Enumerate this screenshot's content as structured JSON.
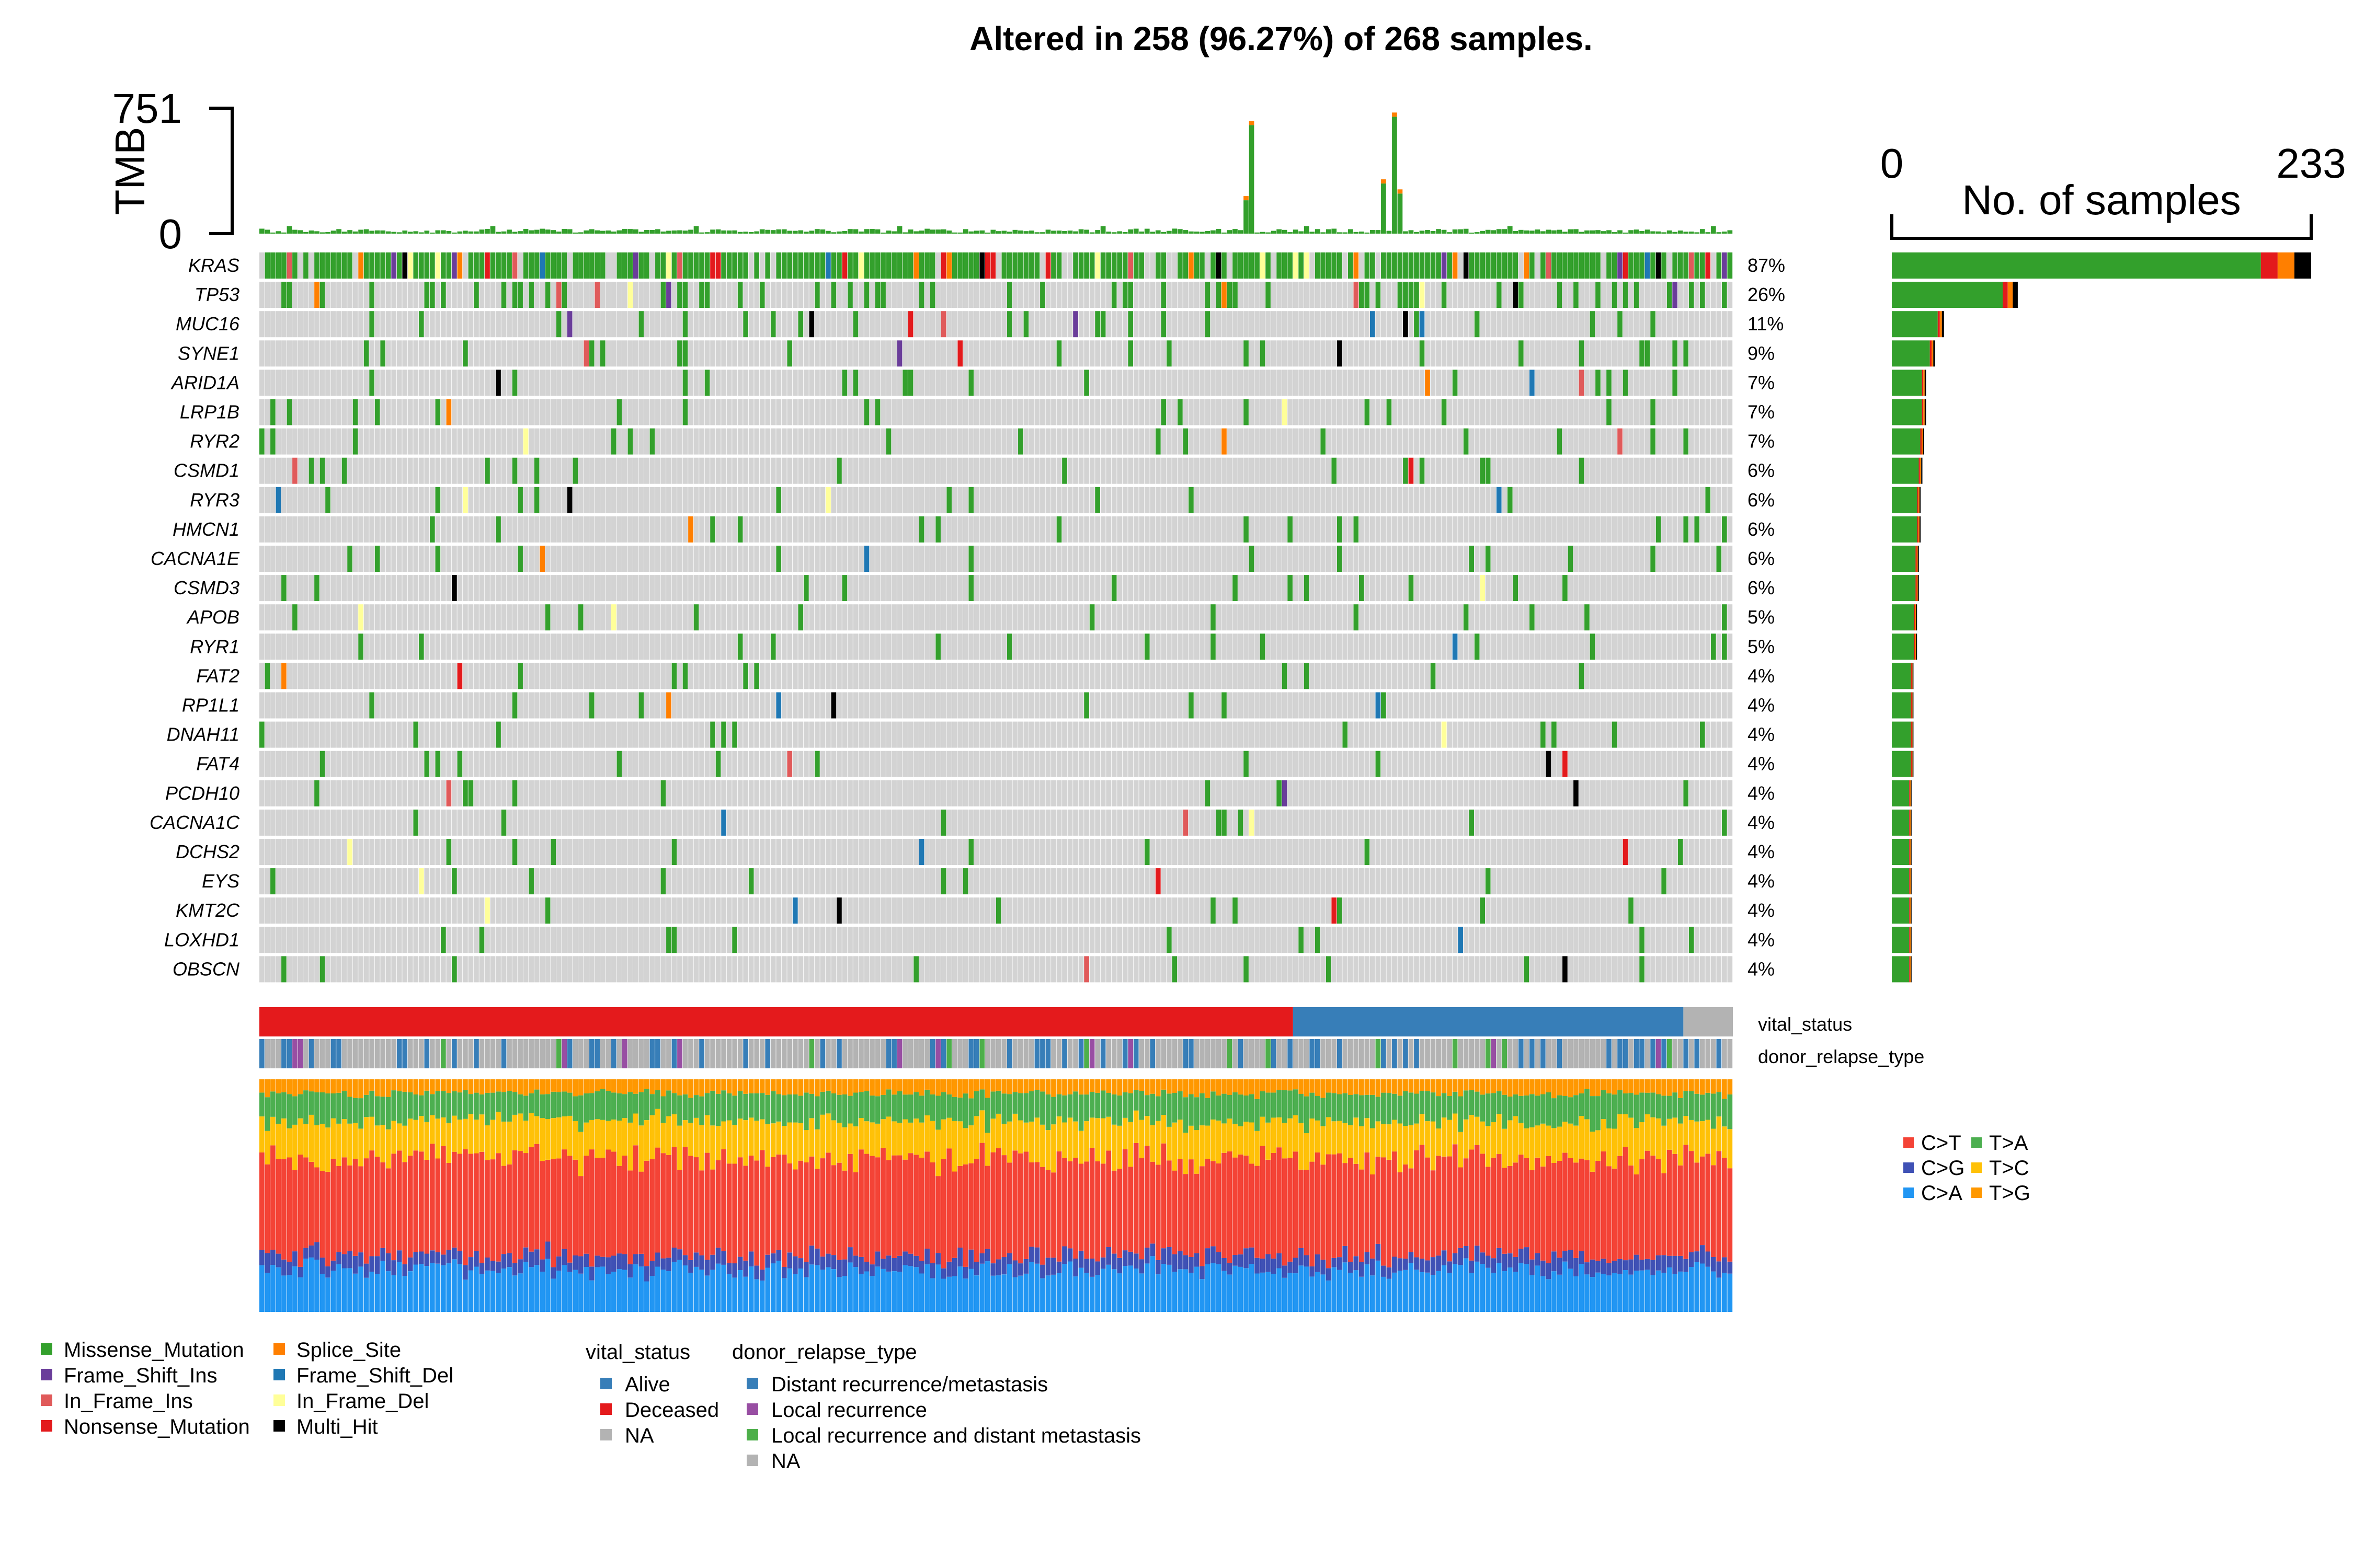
{
  "title": "Altered in 258 (96.27%) of 268 samples.",
  "chart_data": {
    "type": "heatmap",
    "n_samples": 268,
    "n_altered": 258,
    "tmb": {
      "label": "TMB",
      "max_label": "751",
      "min_label": "0",
      "ylim": [
        0,
        751
      ]
    },
    "side_axis": {
      "label": "No. of samples",
      "min_label": "0",
      "max_label": "233",
      "xlim": [
        0,
        233
      ]
    },
    "genes": [
      {
        "name": "KRAS",
        "pct": "87%",
        "count": 233
      },
      {
        "name": "TP53",
        "pct": "26%",
        "count": 70
      },
      {
        "name": "MUC16",
        "pct": "11%",
        "count": 29
      },
      {
        "name": "SYNE1",
        "pct": "9%",
        "count": 24
      },
      {
        "name": "ARID1A",
        "pct": "7%",
        "count": 19
      },
      {
        "name": "LRP1B",
        "pct": "7%",
        "count": 19
      },
      {
        "name": "RYR2",
        "pct": "7%",
        "count": 18
      },
      {
        "name": "CSMD1",
        "pct": "6%",
        "count": 17
      },
      {
        "name": "RYR3",
        "pct": "6%",
        "count": 16
      },
      {
        "name": "HMCN1",
        "pct": "6%",
        "count": 16
      },
      {
        "name": "CACNA1E",
        "pct": "6%",
        "count": 15
      },
      {
        "name": "CSMD3",
        "pct": "6%",
        "count": 15
      },
      {
        "name": "APOB",
        "pct": "5%",
        "count": 14
      },
      {
        "name": "RYR1",
        "pct": "5%",
        "count": 14
      },
      {
        "name": "FAT2",
        "pct": "4%",
        "count": 12
      },
      {
        "name": "RP1L1",
        "pct": "4%",
        "count": 12
      },
      {
        "name": "DNAH11",
        "pct": "4%",
        "count": 12
      },
      {
        "name": "FAT4",
        "pct": "4%",
        "count": 12
      },
      {
        "name": "PCDH10",
        "pct": "4%",
        "count": 11
      },
      {
        "name": "CACNA1C",
        "pct": "4%",
        "count": 11
      },
      {
        "name": "DCHS2",
        "pct": "4%",
        "count": 11
      },
      {
        "name": "EYS",
        "pct": "4%",
        "count": 11
      },
      {
        "name": "KMT2C",
        "pct": "4%",
        "count": 11
      },
      {
        "name": "LOXHD1",
        "pct": "4%",
        "count": 11
      },
      {
        "name": "OBSCN",
        "pct": "4%",
        "count": 11
      }
    ],
    "variant_classes": [
      {
        "name": "Missense_Mutation",
        "color": "#33a02c"
      },
      {
        "name": "Frame_Shift_Ins",
        "color": "#6a3d9a"
      },
      {
        "name": "In_Frame_Ins",
        "color": "#e05a5a"
      },
      {
        "name": "Nonsense_Mutation",
        "color": "#e31a1c"
      },
      {
        "name": "Splice_Site",
        "color": "#ff7f00"
      },
      {
        "name": "Frame_Shift_Del",
        "color": "#1f78b4"
      },
      {
        "name": "In_Frame_Del",
        "color": "#ffff99"
      },
      {
        "name": "Multi_Hit",
        "color": "#000000"
      }
    ],
    "annotations": [
      {
        "name": "vital_status",
        "levels": [
          {
            "label": "Alive",
            "color": "#377eb8"
          },
          {
            "label": "Deceased",
            "color": "#e41a1c"
          },
          {
            "label": "NA",
            "color": "#b3b3b3"
          }
        ],
        "counts": {
          "Deceased": 188,
          "Alive": 71,
          "NA": 9
        }
      },
      {
        "name": "donor_relapse_type",
        "levels": [
          {
            "label": "Distant recurrence/metastasis",
            "color": "#377eb8"
          },
          {
            "label": "Local recurrence",
            "color": "#984ea3"
          },
          {
            "label": "Local recurrence and distant metastasis",
            "color": "#4daf4a"
          },
          {
            "label": "NA",
            "color": "#b3b3b3"
          }
        ]
      }
    ],
    "titv_classes": [
      {
        "name": "C>T",
        "color": "#f44336"
      },
      {
        "name": "T>A",
        "color": "#4caf50"
      },
      {
        "name": "C>G",
        "color": "#3f51b5"
      },
      {
        "name": "T>C",
        "color": "#ffc107"
      },
      {
        "name": "C>A",
        "color": "#2196f3"
      },
      {
        "name": "T>G",
        "color": "#ff9800"
      }
    ],
    "titv_mean_fractions": {
      "C>A": 0.18,
      "C>G": 0.06,
      "C>T": 0.42,
      "T>C": 0.16,
      "T>A": 0.12,
      "T>G": 0.06
    }
  },
  "legend": {
    "vital_status_title": "vital_status",
    "donor_relapse_title": "donor_relapse_type"
  }
}
